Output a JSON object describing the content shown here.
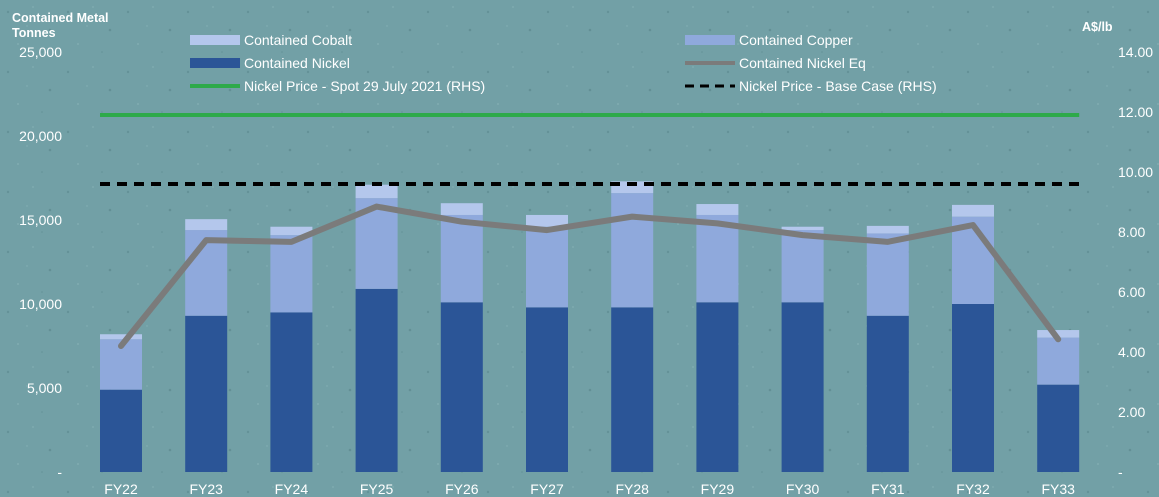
{
  "chart_data": {
    "type": "bar",
    "stacked": true,
    "y_axis_title": "Contained Metal Tonnes",
    "y2_axis_title": "A$/lb",
    "categories": [
      "FY22",
      "FY23",
      "FY24",
      "FY25",
      "FY26",
      "FY27",
      "FY28",
      "FY29",
      "FY30",
      "FY31",
      "FY32",
      "FY33"
    ],
    "ylim": [
      0,
      25000
    ],
    "y2lim": [
      0,
      14
    ],
    "yticks": [
      "-",
      "5,000",
      "10,000",
      "15,000",
      "20,000",
      "25,000"
    ],
    "y2ticks": [
      "-",
      "2.00",
      "4.00",
      "6.00",
      "8.00",
      "10.00",
      "12.00",
      "14.00"
    ],
    "series": [
      {
        "name": "Contained Nickel",
        "kind": "bar",
        "color": "#2b5597",
        "values": [
          4900,
          9300,
          9500,
          10900,
          10100,
          9800,
          9800,
          10100,
          10100,
          9300,
          10000,
          5200
        ]
      },
      {
        "name": "Contained Copper",
        "kind": "bar",
        "color": "#8fa9dc",
        "values": [
          3000,
          5100,
          4600,
          5400,
          5200,
          4800,
          6800,
          5200,
          4300,
          4900,
          5200,
          2800
        ]
      },
      {
        "name": "Contained Cobalt",
        "kind": "bar",
        "color": "#b4c7ec",
        "values": [
          300,
          650,
          500,
          800,
          700,
          700,
          700,
          650,
          200,
          450,
          700,
          450
        ]
      },
      {
        "name": "Contained Nickel Eq",
        "kind": "line",
        "axis": "left",
        "color": "#7b7b7b",
        "values": [
          7500,
          13800,
          13700,
          15800,
          14900,
          14400,
          15200,
          14800,
          14100,
          13700,
          14700,
          7900
        ]
      },
      {
        "name": "Nickel Price - Spot 29 July 2021 (RHS)",
        "kind": "hline",
        "axis": "right",
        "color": "#2eaa4a",
        "value": 11.9
      },
      {
        "name": "Nickel Price - Base Case (RHS)",
        "kind": "hline",
        "axis": "right",
        "color": "#000000",
        "dashed": true,
        "value": 9.6
      }
    ],
    "legend": [
      {
        "label": "Contained Cobalt",
        "swatch": "bar",
        "color": "#b4c7ec"
      },
      {
        "label": "Contained Copper",
        "swatch": "bar",
        "color": "#8fa9dc"
      },
      {
        "label": "Contained Nickel",
        "swatch": "bar",
        "color": "#2b5597"
      },
      {
        "label": "Contained Nickel Eq",
        "swatch": "line",
        "color": "#7b7b7b"
      },
      {
        "label": "Nickel Price - Spot 29 July 2021 (RHS)",
        "swatch": "line",
        "color": "#2eaa4a"
      },
      {
        "label": "Nickel Price - Base Case (RHS)",
        "swatch": "dashed",
        "color": "#000000"
      }
    ]
  }
}
